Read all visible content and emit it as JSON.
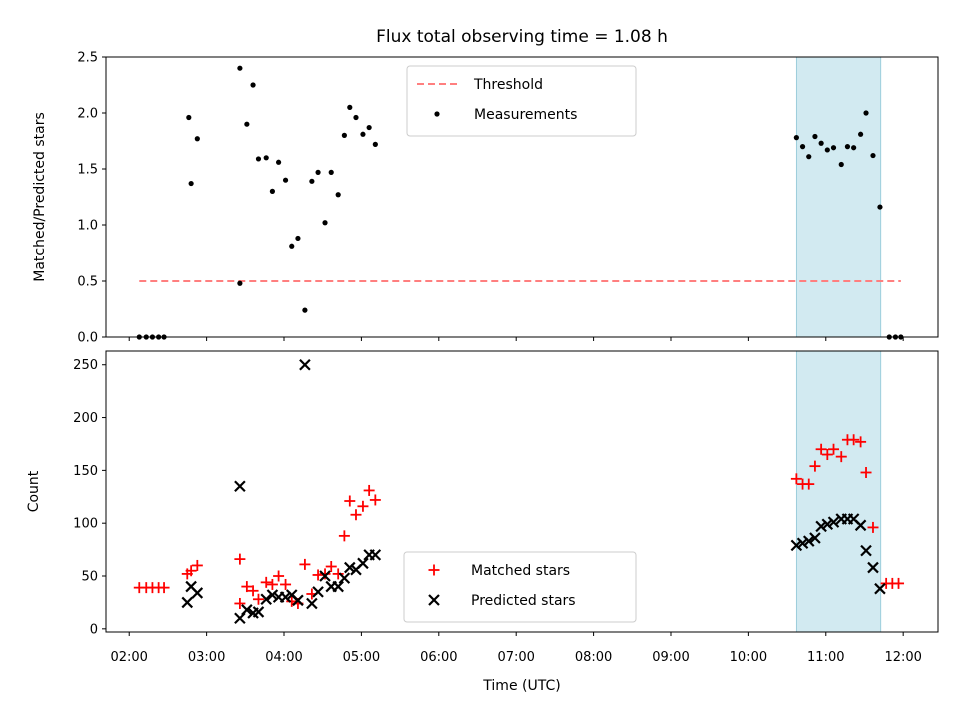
{
  "chart_data": [
    {
      "type": "scatter",
      "title": "Flux total observing time = 1.08 h",
      "xlabel": "",
      "ylabel": "Matched/Predicted stars",
      "xlim_hours": [
        1.7,
        12.45
      ],
      "ylim": [
        0,
        2.5
      ],
      "yticks": [
        0,
        0.5,
        1.0,
        1.5,
        2.0,
        2.5
      ],
      "ytick_labels": [
        "0.0",
        "0.5",
        "1.0",
        "1.5",
        "2.0",
        "2.5"
      ],
      "highlight_span_hours": [
        10.62,
        11.71
      ],
      "highlight_color": "#add8e6",
      "legend_location": "upper center",
      "threshold": {
        "name": "Threshold",
        "value": 0.5,
        "x_range_hours": [
          2.13,
          11.97
        ],
        "color": "#ff7f7f"
      },
      "series": [
        {
          "name": "Measurements",
          "color": "#000000",
          "marker": "dot",
          "points": [
            [
              2.13,
              0
            ],
            [
              2.22,
              0
            ],
            [
              2.3,
              0
            ],
            [
              2.38,
              0
            ],
            [
              2.45,
              0
            ],
            [
              2.77,
              1.96
            ],
            [
              2.8,
              1.37
            ],
            [
              2.88,
              1.77
            ],
            [
              3.43,
              2.4
            ],
            [
              3.43,
              0.48
            ],
            [
              3.52,
              1.9
            ],
            [
              3.6,
              2.25
            ],
            [
              3.67,
              1.59
            ],
            [
              3.77,
              1.6
            ],
            [
              3.85,
              1.3
            ],
            [
              3.93,
              1.56
            ],
            [
              4.02,
              1.4
            ],
            [
              4.1,
              0.81
            ],
            [
              4.18,
              0.88
            ],
            [
              4.27,
              0.24
            ],
            [
              4.36,
              1.39
            ],
            [
              4.44,
              1.47
            ],
            [
              4.53,
              1.02
            ],
            [
              4.61,
              1.47
            ],
            [
              4.7,
              1.27
            ],
            [
              4.78,
              1.8
            ],
            [
              4.85,
              2.05
            ],
            [
              4.93,
              1.96
            ],
            [
              5.02,
              1.81
            ],
            [
              5.1,
              1.87
            ],
            [
              5.18,
              1.72
            ],
            [
              10.62,
              1.78
            ],
            [
              10.7,
              1.7
            ],
            [
              10.78,
              1.61
            ],
            [
              10.86,
              1.79
            ],
            [
              10.94,
              1.73
            ],
            [
              11.02,
              1.67
            ],
            [
              11.1,
              1.69
            ],
            [
              11.2,
              1.54
            ],
            [
              11.28,
              1.7
            ],
            [
              11.36,
              1.69
            ],
            [
              11.45,
              1.81
            ],
            [
              11.52,
              2.0
            ],
            [
              11.61,
              1.62
            ],
            [
              11.7,
              1.16
            ],
            [
              11.82,
              0
            ],
            [
              11.9,
              0
            ],
            [
              11.97,
              0
            ]
          ]
        }
      ]
    },
    {
      "type": "scatter",
      "title": "",
      "xlabel": "Time (UTC)",
      "ylabel": "Count",
      "xlim_hours": [
        1.7,
        12.45
      ],
      "ylim": [
        -3,
        263
      ],
      "xticks_hours": [
        2,
        3,
        4,
        5,
        6,
        7,
        8,
        9,
        10,
        11,
        12
      ],
      "xtick_labels": [
        "02:00",
        "03:00",
        "04:00",
        "05:00",
        "06:00",
        "07:00",
        "08:00",
        "09:00",
        "10:00",
        "11:00",
        "12:00"
      ],
      "yticks": [
        0,
        50,
        100,
        150,
        200,
        250
      ],
      "ytick_labels": [
        "0",
        "50",
        "100",
        "150",
        "200",
        "250"
      ],
      "highlight_span_hours": [
        10.62,
        11.71
      ],
      "highlight_color": "#add8e6",
      "legend_location": "lower center",
      "series": [
        {
          "name": "Matched stars",
          "color": "#ff0000",
          "marker": "plus",
          "points": [
            [
              2.13,
              39
            ],
            [
              2.22,
              39
            ],
            [
              2.3,
              39
            ],
            [
              2.38,
              39
            ],
            [
              2.45,
              39
            ],
            [
              2.75,
              52
            ],
            [
              2.8,
              55
            ],
            [
              2.88,
              60
            ],
            [
              3.43,
              66
            ],
            [
              3.43,
              24
            ],
            [
              3.52,
              40
            ],
            [
              3.6,
              36
            ],
            [
              3.67,
              28
            ],
            [
              3.77,
              44
            ],
            [
              3.85,
              42
            ],
            [
              3.93,
              50
            ],
            [
              4.02,
              42
            ],
            [
              4.1,
              26
            ],
            [
              4.18,
              24
            ],
            [
              4.27,
              61
            ],
            [
              4.36,
              33
            ],
            [
              4.44,
              51
            ],
            [
              4.53,
              52
            ],
            [
              4.61,
              59
            ],
            [
              4.7,
              52
            ],
            [
              4.78,
              88
            ],
            [
              4.85,
              121
            ],
            [
              4.93,
              108
            ],
            [
              5.02,
              116
            ],
            [
              5.1,
              131
            ],
            [
              5.18,
              122
            ],
            [
              10.62,
              142
            ],
            [
              10.7,
              137
            ],
            [
              10.78,
              137
            ],
            [
              10.86,
              154
            ],
            [
              10.94,
              170
            ],
            [
              11.02,
              165
            ],
            [
              11.1,
              170
            ],
            [
              11.2,
              163
            ],
            [
              11.28,
              179
            ],
            [
              11.36,
              179
            ],
            [
              11.45,
              177
            ],
            [
              11.52,
              148
            ],
            [
              11.61,
              96
            ],
            [
              11.78,
              43
            ],
            [
              11.86,
              43
            ],
            [
              11.94,
              43
            ]
          ]
        },
        {
          "name": "Predicted stars",
          "color": "#000000",
          "marker": "x",
          "points": [
            [
              2.75,
              25
            ],
            [
              2.8,
              40
            ],
            [
              2.88,
              34
            ],
            [
              3.43,
              135
            ],
            [
              3.43,
              10
            ],
            [
              3.52,
              18
            ],
            [
              3.6,
              15
            ],
            [
              3.67,
              16
            ],
            [
              3.77,
              28
            ],
            [
              3.85,
              32
            ],
            [
              3.93,
              30
            ],
            [
              4.02,
              30
            ],
            [
              4.1,
              32
            ],
            [
              4.18,
              27
            ],
            [
              4.27,
              250
            ],
            [
              4.36,
              24
            ],
            [
              4.44,
              35
            ],
            [
              4.53,
              50
            ],
            [
              4.61,
              40
            ],
            [
              4.7,
              40
            ],
            [
              4.78,
              48
            ],
            [
              4.85,
              58
            ],
            [
              4.93,
              56
            ],
            [
              5.02,
              62
            ],
            [
              5.1,
              70
            ],
            [
              5.18,
              70
            ],
            [
              10.62,
              79
            ],
            [
              10.7,
              81
            ],
            [
              10.78,
              83
            ],
            [
              10.86,
              86
            ],
            [
              10.94,
              97
            ],
            [
              11.02,
              99
            ],
            [
              11.1,
              101
            ],
            [
              11.2,
              104
            ],
            [
              11.28,
              104
            ],
            [
              11.36,
              104
            ],
            [
              11.45,
              98
            ],
            [
              11.52,
              74
            ],
            [
              11.61,
              58
            ],
            [
              11.7,
              38
            ]
          ]
        }
      ]
    }
  ]
}
